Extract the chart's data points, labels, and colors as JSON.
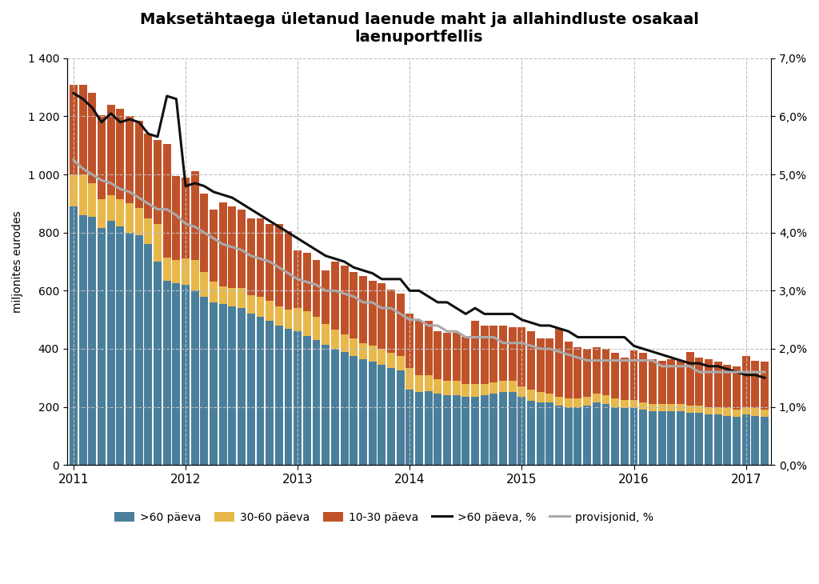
{
  "title": "Maksetähtaega ületanud laenude maht ja allahindluste osakaal\nlaenuportfellis",
  "ylabel_left": "miljonites eurodes",
  "ylim_left": [
    0,
    1400
  ],
  "ylim_right": [
    0,
    0.07
  ],
  "bar_colors": {
    "gt60": "#4a7f9c",
    "d30_60": "#e8b84b",
    "d10_30": "#c0522a"
  },
  "line_colors": {
    "gt60_pct": "#111111",
    "provisjonid": "#aaaaaa"
  },
  "gt60": [
    890,
    860,
    855,
    815,
    840,
    820,
    800,
    790,
    760,
    700,
    635,
    625,
    620,
    600,
    580,
    560,
    555,
    545,
    540,
    520,
    510,
    495,
    480,
    470,
    460,
    445,
    430,
    415,
    400,
    390,
    375,
    365,
    355,
    345,
    335,
    325,
    260,
    250,
    255,
    245,
    240,
    240,
    235,
    235,
    240,
    245,
    250,
    250,
    235,
    220,
    215,
    215,
    205,
    200,
    200,
    205,
    215,
    210,
    200,
    195,
    195,
    190,
    185,
    185,
    185,
    185,
    180,
    180,
    175,
    175,
    170,
    165,
    175,
    170,
    165
  ],
  "d30_60": [
    110,
    140,
    115,
    100,
    90,
    95,
    100,
    95,
    90,
    130,
    80,
    80,
    90,
    105,
    85,
    70,
    60,
    65,
    70,
    65,
    70,
    70,
    65,
    65,
    80,
    85,
    80,
    70,
    65,
    60,
    60,
    55,
    55,
    55,
    50,
    50,
    75,
    60,
    55,
    50,
    50,
    50,
    45,
    45,
    40,
    40,
    40,
    40,
    35,
    40,
    35,
    30,
    30,
    30,
    30,
    30,
    30,
    30,
    30,
    30,
    30,
    25,
    25,
    25,
    25,
    25,
    25,
    25,
    25,
    25,
    25,
    25,
    25,
    25,
    25
  ],
  "d10_30": [
    310,
    310,
    310,
    290,
    310,
    310,
    300,
    300,
    290,
    290,
    390,
    290,
    280,
    305,
    270,
    250,
    290,
    280,
    270,
    265,
    270,
    265,
    285,
    270,
    200,
    200,
    195,
    185,
    235,
    235,
    230,
    230,
    225,
    225,
    220,
    215,
    185,
    185,
    185,
    165,
    165,
    165,
    160,
    215,
    200,
    195,
    190,
    185,
    205,
    200,
    185,
    190,
    235,
    195,
    175,
    165,
    160,
    160,
    155,
    145,
    170,
    170,
    155,
    150,
    155,
    150,
    185,
    165,
    165,
    155,
    150,
    150,
    175,
    165,
    165
  ],
  "gt60_pct": [
    0.064,
    0.063,
    0.0615,
    0.059,
    0.0605,
    0.059,
    0.0595,
    0.059,
    0.057,
    0.0565,
    0.0635,
    0.063,
    0.048,
    0.0485,
    0.048,
    0.047,
    0.0465,
    0.046,
    0.045,
    0.044,
    0.043,
    0.042,
    0.041,
    0.04,
    0.039,
    0.038,
    0.037,
    0.036,
    0.0355,
    0.035,
    0.034,
    0.0335,
    0.033,
    0.032,
    0.032,
    0.032,
    0.03,
    0.03,
    0.029,
    0.028,
    0.028,
    0.027,
    0.026,
    0.027,
    0.026,
    0.026,
    0.026,
    0.026,
    0.025,
    0.0245,
    0.024,
    0.024,
    0.0235,
    0.023,
    0.022,
    0.022,
    0.022,
    0.022,
    0.022,
    0.022,
    0.0205,
    0.02,
    0.0195,
    0.019,
    0.0185,
    0.018,
    0.0175,
    0.0175,
    0.017,
    0.017,
    0.0165,
    0.016,
    0.0155,
    0.0155,
    0.015
  ],
  "provisjonid_pct": [
    0.0525,
    0.051,
    0.05,
    0.049,
    0.0485,
    0.0475,
    0.047,
    0.046,
    0.045,
    0.044,
    0.044,
    0.043,
    0.0415,
    0.041,
    0.04,
    0.039,
    0.038,
    0.0375,
    0.037,
    0.036,
    0.0355,
    0.035,
    0.034,
    0.033,
    0.032,
    0.0315,
    0.031,
    0.03,
    0.03,
    0.0295,
    0.029,
    0.028,
    0.028,
    0.027,
    0.027,
    0.026,
    0.025,
    0.025,
    0.024,
    0.024,
    0.023,
    0.023,
    0.022,
    0.022,
    0.022,
    0.022,
    0.021,
    0.021,
    0.021,
    0.0205,
    0.02,
    0.02,
    0.0195,
    0.019,
    0.0185,
    0.018,
    0.018,
    0.018,
    0.018,
    0.018,
    0.018,
    0.018,
    0.018,
    0.017,
    0.017,
    0.017,
    0.017,
    0.016,
    0.016,
    0.016,
    0.016,
    0.016,
    0.016,
    0.016,
    0.016
  ],
  "xtick_positions": [
    0,
    12,
    24,
    36,
    48,
    60,
    72
  ],
  "xtick_labels": [
    "2011",
    "2012",
    "2013",
    "2014",
    "2015",
    "2016",
    "2017"
  ],
  "ytick_left": [
    0,
    200,
    400,
    600,
    800,
    1000,
    1200,
    1400
  ],
  "ytick_right": [
    0.0,
    0.01,
    0.02,
    0.03,
    0.04,
    0.05,
    0.06,
    0.07
  ],
  "ytick_right_labels": [
    "0,0%",
    "1,0%",
    "2,0%",
    "3,0%",
    "4,0%",
    "5,0%",
    "6,0%",
    "7,0%"
  ]
}
